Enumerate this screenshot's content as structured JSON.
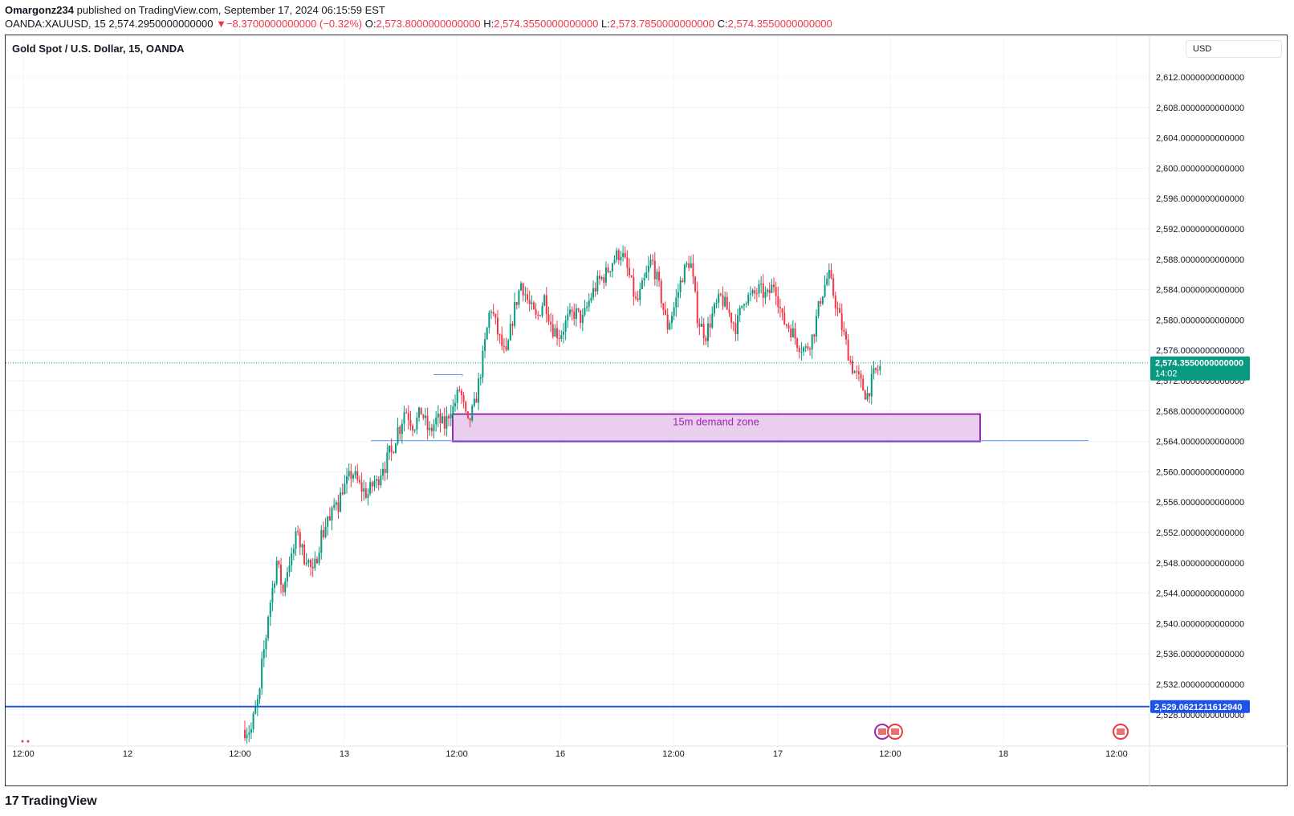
{
  "header": {
    "author": "Omargonz234",
    "published_text": "published on TradingView.com, September 17, 2024 06:15:59 EST",
    "symbol": "OANDA:XAUUSD, 15",
    "last": "2,574.2950000000000",
    "change_arrow": "▼",
    "change": "−8.3700000000000 (−0.32%)",
    "o_label": "O:",
    "o": "2,573.8000000000000",
    "h_label": "H:",
    "h": "2,574.3550000000000",
    "l_label": "L:",
    "l": "2,573.7850000000000",
    "c_label": "C:",
    "c": "2,574.3550000000000"
  },
  "chart_title": "Gold Spot / U.S. Dollar, 15, OANDA",
  "currency_button": "USD",
  "footer_logo": "TradingView",
  "footer_logo_mark": "17",
  "colors": {
    "up": "#089981",
    "down": "#f23645",
    "zone_fill": "#e1bee7",
    "zone_border": "#9c27b0",
    "line_blue": "#1e53e5",
    "level_blue": "#5b9cf6",
    "grid": "#f0f3fa",
    "price_tag": "#089981"
  },
  "chart_data": {
    "type": "candlestick",
    "title": "Gold Spot / U.S. Dollar, 15, OANDA",
    "ylim": [
      2526,
      2616
    ],
    "y_ticks": [
      2528,
      2532,
      2536,
      2540,
      2544,
      2548,
      2552,
      2556,
      2560,
      2564,
      2568,
      2572,
      2576,
      2580,
      2584,
      2588,
      2592,
      2596,
      2600,
      2604,
      2608,
      2612
    ],
    "y_tick_labels": [
      "2,528.0000000000000",
      "2,532.0000000000000",
      "2,536.0000000000000",
      "2,540.0000000000000",
      "2,544.0000000000000",
      "2,548.0000000000000",
      "2,552.0000000000000",
      "2,556.0000000000000",
      "2,560.0000000000000",
      "2,564.0000000000000",
      "2,568.0000000000000",
      "2,572.0000000000000",
      "2,576.0000000000000",
      "2,580.0000000000000",
      "2,584.0000000000000",
      "2,588.0000000000000",
      "2,592.0000000000000",
      "2,596.0000000000000",
      "2,600.0000000000000",
      "2,604.0000000000000",
      "2,608.0000000000000",
      "2,612.0000000000000"
    ],
    "x_ticks": [
      "12:00",
      "12",
      "12:00",
      "13",
      "12:00",
      "16",
      "12:00",
      "17",
      "12:00",
      "18",
      "12:00"
    ],
    "price_path": [
      [
        2526,
        2526
      ],
      [
        2527,
        2531
      ],
      [
        2533,
        2540
      ],
      [
        2541,
        2547
      ],
      [
        2549,
        2544
      ],
      [
        2545,
        2549
      ],
      [
        2548,
        2553
      ],
      [
        2551,
        2548
      ],
      [
        2549,
        2546
      ],
      [
        2547,
        2552
      ],
      [
        2551,
        2555
      ],
      [
        2553,
        2557
      ],
      [
        2555,
        2559
      ],
      [
        2558,
        2560
      ],
      [
        2560,
        2558
      ],
      [
        2558,
        2557
      ],
      [
        2557,
        2559
      ],
      [
        2558,
        2561
      ],
      [
        2560,
        2563
      ],
      [
        2562,
        2566
      ],
      [
        2565,
        2569
      ],
      [
        2568,
        2566
      ],
      [
        2566,
        2568
      ],
      [
        2568,
        2565
      ],
      [
        2565,
        2567
      ],
      [
        2567,
        2566
      ],
      [
        2566,
        2569
      ],
      [
        2568,
        2571
      ],
      [
        2571,
        2566
      ],
      [
        2566,
        2569
      ],
      [
        2569,
        2575
      ],
      [
        2575,
        2582
      ],
      [
        2582,
        2578
      ],
      [
        2578,
        2575
      ],
      [
        2575,
        2581
      ],
      [
        2581,
        2585
      ],
      [
        2585,
        2582
      ],
      [
        2582,
        2580
      ],
      [
        2580,
        2583
      ],
      [
        2583,
        2579
      ],
      [
        2579,
        2578
      ],
      [
        2578,
        2580
      ],
      [
        2580,
        2581
      ],
      [
        2581,
        2580
      ],
      [
        2580,
        2583
      ],
      [
        2583,
        2585
      ],
      [
        2585,
        2586
      ],
      [
        2586,
        2588
      ],
      [
        2588,
        2589
      ],
      [
        2589,
        2586
      ],
      [
        2586,
        2582
      ],
      [
        2582,
        2585
      ],
      [
        2585,
        2588
      ],
      [
        2588,
        2584
      ],
      [
        2584,
        2579
      ],
      [
        2579,
        2582
      ],
      [
        2582,
        2586
      ],
      [
        2586,
        2588
      ],
      [
        2588,
        2580
      ],
      [
        2580,
        2578
      ],
      [
        2578,
        2581
      ],
      [
        2581,
        2583
      ],
      [
        2583,
        2581
      ],
      [
        2581,
        2579
      ],
      [
        2579,
        2583
      ],
      [
        2583,
        2583
      ],
      [
        2583,
        2584
      ],
      [
        2584,
        2583
      ],
      [
        2583,
        2585
      ],
      [
        2585,
        2580
      ],
      [
        2580,
        2579
      ],
      [
        2579,
        2577
      ],
      [
        2577,
        2576
      ],
      [
        2576,
        2578
      ],
      [
        2578,
        2583
      ],
      [
        2583,
        2586
      ],
      [
        2586,
        2582
      ],
      [
        2582,
        2578
      ],
      [
        2578,
        2574
      ],
      [
        2574,
        2572
      ],
      [
        2572,
        2570
      ],
      [
        2570,
        2573
      ],
      [
        2573,
        2574
      ]
    ],
    "demand_zone": {
      "label": "15m demand zone",
      "low": 2564,
      "high": 2567.6
    },
    "horizontal_lines": [
      {
        "price": 2529.062121161294,
        "label": "2,529.0621211612940"
      },
      {
        "price": 2564.1,
        "label": ""
      },
      {
        "price": 2572.8,
        "label": ""
      }
    ],
    "last_price": {
      "price": 2574.355,
      "label": "2,574.3550000000000",
      "countdown": "14:02"
    }
  }
}
